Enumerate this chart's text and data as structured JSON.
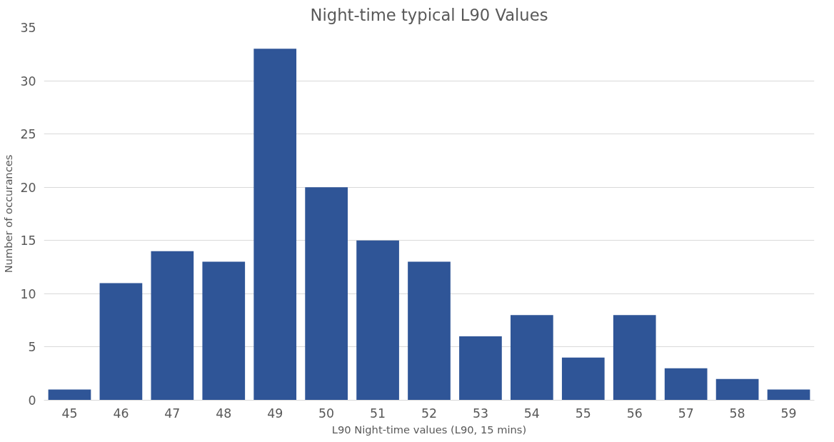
{
  "chart_data": {
    "type": "bar",
    "title": "Night-time typical L90 Values",
    "xlabel": "L90 Night-time values (L90, 15 mins)",
    "ylabel": "Number of occurances",
    "categories": [
      "45",
      "46",
      "47",
      "48",
      "49",
      "50",
      "51",
      "52",
      "53",
      "54",
      "55",
      "56",
      "57",
      "58",
      "59"
    ],
    "values": [
      1,
      11,
      14,
      13,
      33,
      20,
      15,
      13,
      6,
      8,
      4,
      8,
      3,
      2,
      1
    ],
    "color": "#2f5597",
    "ylim": [
      0,
      35
    ],
    "yticks": [
      0,
      5,
      10,
      15,
      20,
      25,
      30,
      35
    ],
    "grid": "y"
  }
}
